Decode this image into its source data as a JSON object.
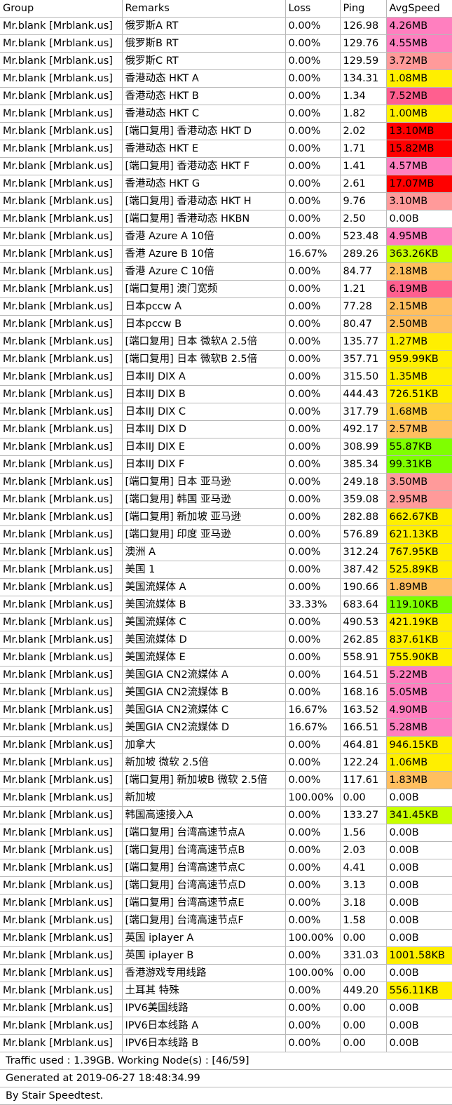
{
  "headers": [
    "Group",
    "Remarks",
    "Loss",
    "Ping",
    "AvgSpeed"
  ],
  "rows": [
    [
      "Mr.blank [Mrblank.us]",
      "俄罗斯A RT",
      "0.00%",
      "126.98",
      "4.26MB",
      "#ff7fbf"
    ],
    [
      "Mr.blank [Mrblank.us]",
      "俄罗斯B RT",
      "0.00%",
      "129.76",
      "4.55MB",
      "#ff7fbf"
    ],
    [
      "Mr.blank [Mrblank.us]",
      "俄罗斯C RT",
      "0.00%",
      "129.59",
      "3.72MB",
      "#ff9a9a"
    ],
    [
      "Mr.blank [Mrblank.us]",
      "香港动态 HKT A",
      "0.00%",
      "134.31",
      "1.08MB",
      "#ffef00"
    ],
    [
      "Mr.blank [Mrblank.us]",
      "香港动态 HKT B",
      "0.00%",
      "1.34",
      "7.52MB",
      "#ff5f8f"
    ],
    [
      "Mr.blank [Mrblank.us]",
      "香港动态 HKT C",
      "0.00%",
      "1.82",
      "1.00MB",
      "#ffef00"
    ],
    [
      "Mr.blank [Mrblank.us]",
      "[端口复用] 香港动态 HKT D",
      "0.00%",
      "2.02",
      "13.10MB",
      "#ff0000"
    ],
    [
      "Mr.blank [Mrblank.us]",
      "香港动态 HKT E",
      "0.00%",
      "1.71",
      "15.82MB",
      "#ff0000"
    ],
    [
      "Mr.blank [Mrblank.us]",
      "[端口复用] 香港动态 HKT F",
      "0.00%",
      "1.41",
      "4.57MB",
      "#ff7fbf"
    ],
    [
      "Mr.blank [Mrblank.us]",
      "香港动态 HKT G",
      "0.00%",
      "2.61",
      "17.07MB",
      "#ff0000"
    ],
    [
      "Mr.blank [Mrblank.us]",
      "[端口复用] 香港动态 HKT H",
      "0.00%",
      "9.76",
      "3.10MB",
      "#ff9a9a"
    ],
    [
      "Mr.blank [Mrblank.us]",
      "[端口复用] 香港动态 HKBN",
      "0.00%",
      "2.50",
      "0.00B",
      "#ffffff"
    ],
    [
      "Mr.blank [Mrblank.us]",
      "香港 Azure A 10倍",
      "0.00%",
      "523.48",
      "4.95MB",
      "#ff7fbf"
    ],
    [
      "Mr.blank [Mrblank.us]",
      "香港 Azure B 10倍",
      "16.67%",
      "289.26",
      "363.26KB",
      "#c8ff00"
    ],
    [
      "Mr.blank [Mrblank.us]",
      "香港 Azure C 10倍",
      "0.00%",
      "84.77",
      "2.18MB",
      "#ffbf5f"
    ],
    [
      "Mr.blank [Mrblank.us]",
      "[端口复用] 澳门宽频",
      "0.00%",
      "1.21",
      "6.19MB",
      "#ff5f8f"
    ],
    [
      "Mr.blank [Mrblank.us]",
      "日本pccw A",
      "0.00%",
      "77.28",
      "2.15MB",
      "#ffbf5f"
    ],
    [
      "Mr.blank [Mrblank.us]",
      "日本pccw B",
      "0.00%",
      "80.47",
      "2.50MB",
      "#ffbf5f"
    ],
    [
      "Mr.blank [Mrblank.us]",
      "[端口复用] 日本 微软A 2.5倍",
      "0.00%",
      "135.77",
      "1.27MB",
      "#ffef00"
    ],
    [
      "Mr.blank [Mrblank.us]",
      "[端口复用] 日本 微软B 2.5倍",
      "0.00%",
      "357.71",
      "959.99KB",
      "#ffef00"
    ],
    [
      "Mr.blank [Mrblank.us]",
      "日本IIJ DIX A",
      "0.00%",
      "315.50",
      "1.35MB",
      "#ffef00"
    ],
    [
      "Mr.blank [Mrblank.us]",
      "日本IIJ DIX B",
      "0.00%",
      "444.43",
      "726.51KB",
      "#ffef00"
    ],
    [
      "Mr.blank [Mrblank.us]",
      "日本IIJ DIX C",
      "0.00%",
      "317.79",
      "1.68MB",
      "#ffcf3f"
    ],
    [
      "Mr.blank [Mrblank.us]",
      "日本IIJ DIX D",
      "0.00%",
      "492.17",
      "2.57MB",
      "#ffbf5f"
    ],
    [
      "Mr.blank [Mrblank.us]",
      "日本IIJ DIX E",
      "0.00%",
      "308.99",
      "55.87KB",
      "#7fff00"
    ],
    [
      "Mr.blank [Mrblank.us]",
      "日本IIJ DIX F",
      "0.00%",
      "385.34",
      "99.31KB",
      "#7fff00"
    ],
    [
      "Mr.blank [Mrblank.us]",
      "[端口复用] 日本 亚马逊",
      "0.00%",
      "249.18",
      "3.50MB",
      "#ff9a9a"
    ],
    [
      "Mr.blank [Mrblank.us]",
      "[端口复用] 韩国 亚马逊",
      "0.00%",
      "359.08",
      "2.95MB",
      "#ff9a9a"
    ],
    [
      "Mr.blank [Mrblank.us]",
      "[端口复用] 新加坡 亚马逊",
      "0.00%",
      "282.88",
      "662.67KB",
      "#ffef00"
    ],
    [
      "Mr.blank [Mrblank.us]",
      "[端口复用] 印度 亚马逊",
      "0.00%",
      "576.89",
      "621.13KB",
      "#ffef00"
    ],
    [
      "Mr.blank [Mrblank.us]",
      "澳洲 A",
      "0.00%",
      "312.24",
      "767.95KB",
      "#ffef00"
    ],
    [
      "Mr.blank [Mrblank.us]",
      "美国 1",
      "0.00%",
      "387.42",
      "525.89KB",
      "#ffef00"
    ],
    [
      "Mr.blank [Mrblank.us]",
      "美国流媒体 A",
      "0.00%",
      "190.66",
      "1.89MB",
      "#ffbf5f"
    ],
    [
      "Mr.blank [Mrblank.us]",
      "美国流媒体 B",
      "33.33%",
      "683.64",
      "119.10KB",
      "#7fff00"
    ],
    [
      "Mr.blank [Mrblank.us]",
      "美国流媒体 C",
      "0.00%",
      "490.53",
      "421.19KB",
      "#ffef00"
    ],
    [
      "Mr.blank [Mrblank.us]",
      "美国流媒体 D",
      "0.00%",
      "262.85",
      "837.61KB",
      "#ffef00"
    ],
    [
      "Mr.blank [Mrblank.us]",
      "美国流媒体 E",
      "0.00%",
      "558.91",
      "755.90KB",
      "#ffef00"
    ],
    [
      "Mr.blank [Mrblank.us]",
      "美国GIA CN2流媒体 A",
      "0.00%",
      "164.51",
      "5.22MB",
      "#ff7fbf"
    ],
    [
      "Mr.blank [Mrblank.us]",
      "美国GIA CN2流媒体 B",
      "0.00%",
      "168.16",
      "5.05MB",
      "#ff7fbf"
    ],
    [
      "Mr.blank [Mrblank.us]",
      "美国GIA CN2流媒体 C",
      "16.67%",
      "163.52",
      "4.90MB",
      "#ff7fbf"
    ],
    [
      "Mr.blank [Mrblank.us]",
      "美国GIA CN2流媒体 D",
      "16.67%",
      "166.51",
      "5.28MB",
      "#ff7fbf"
    ],
    [
      "Mr.blank [Mrblank.us]",
      "加拿大",
      "0.00%",
      "464.81",
      "946.15KB",
      "#ffef00"
    ],
    [
      "Mr.blank [Mrblank.us]",
      "新加坡 微软 2.5倍",
      "0.00%",
      "122.24",
      "1.06MB",
      "#ffef00"
    ],
    [
      "Mr.blank [Mrblank.us]",
      "[端口复用] 新加坡B 微软 2.5倍",
      "0.00%",
      "117.61",
      "1.83MB",
      "#ffbf5f"
    ],
    [
      "Mr.blank [Mrblank.us]",
      "新加坡",
      "100.00%",
      "0.00",
      "0.00B",
      "#ffffff"
    ],
    [
      "Mr.blank [Mrblank.us]",
      "韩国高速接入A",
      "0.00%",
      "133.27",
      "341.45KB",
      "#c8ff00"
    ],
    [
      "Mr.blank [Mrblank.us]",
      "[端口复用] 台湾高速节点A",
      "0.00%",
      "1.56",
      "0.00B",
      "#ffffff"
    ],
    [
      "Mr.blank [Mrblank.us]",
      "[端口复用] 台湾高速节点B",
      "0.00%",
      "2.03",
      "0.00B",
      "#ffffff"
    ],
    [
      "Mr.blank [Mrblank.us]",
      "[端口复用] 台湾高速节点C",
      "0.00%",
      "4.41",
      "0.00B",
      "#ffffff"
    ],
    [
      "Mr.blank [Mrblank.us]",
      "[端口复用] 台湾高速节点D",
      "0.00%",
      "3.13",
      "0.00B",
      "#ffffff"
    ],
    [
      "Mr.blank [Mrblank.us]",
      "[端口复用] 台湾高速节点E",
      "0.00%",
      "3.18",
      "0.00B",
      "#ffffff"
    ],
    [
      "Mr.blank [Mrblank.us]",
      "[端口复用] 台湾高速节点F",
      "0.00%",
      "1.58",
      "0.00B",
      "#ffffff"
    ],
    [
      "Mr.blank [Mrblank.us]",
      "英国 iplayer A",
      "100.00%",
      "0.00",
      "0.00B",
      "#ffffff"
    ],
    [
      "Mr.blank [Mrblank.us]",
      "英国 iplayer B",
      "0.00%",
      "331.03",
      "1001.58KB",
      "#ffef00"
    ],
    [
      "Mr.blank [Mrblank.us]",
      "香港游戏专用线路",
      "100.00%",
      "0.00",
      "0.00B",
      "#ffffff"
    ],
    [
      "Mr.blank [Mrblank.us]",
      "土耳其 特殊",
      "0.00%",
      "449.20",
      "556.11KB",
      "#ffef00"
    ],
    [
      "Mr.blank [Mrblank.us]",
      "IPV6美国线路",
      "0.00%",
      "0.00",
      "0.00B",
      "#ffffff"
    ],
    [
      "Mr.blank [Mrblank.us]",
      "IPV6日本线路 A",
      "0.00%",
      "0.00",
      "0.00B",
      "#ffffff"
    ],
    [
      "Mr.blank [Mrblank.us]",
      "IPV6日本线路 B",
      "0.00%",
      "0.00",
      "0.00B",
      "#ffffff"
    ]
  ],
  "footer": {
    "traffic": "Traffic used : 1.39GB. Working Node(s) : [46/59]",
    "generated": "Generated at 2019-06-27 18:48:34.99",
    "credit": "By Stair Speedtest."
  }
}
